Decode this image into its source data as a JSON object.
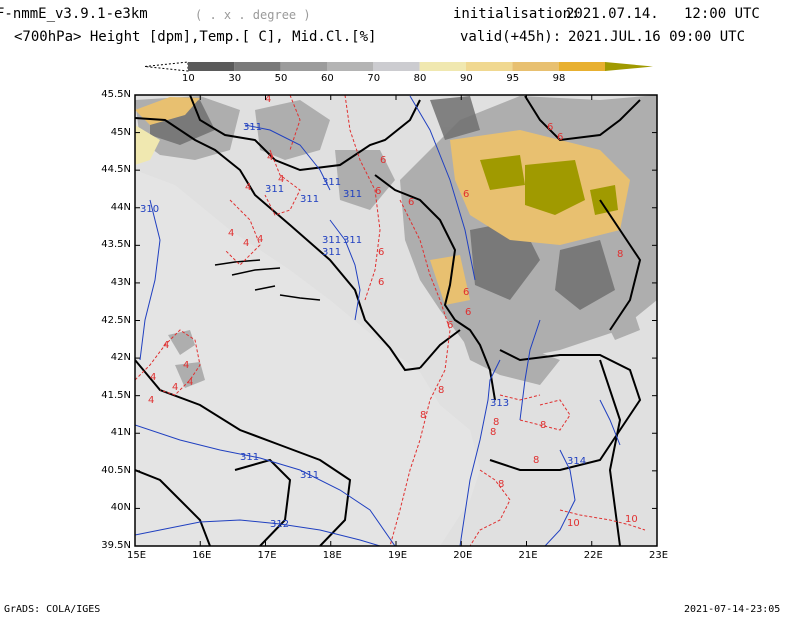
{
  "header": {
    "model": "F-nmmE_v3.9.1-e3km",
    "projection": "( . x . degree )",
    "init_label": "initialisation:",
    "init_value": "2021.07.14.   12:00 UTC",
    "subtitle": "<700hPa> Height [dpm],Temp.[ C], Mid.Cl.[%]",
    "valid_label": "valid(+45h):",
    "valid_value": "2021.JUL.16 09:00 UTC"
  },
  "colorbar": {
    "labels": [
      "10",
      "30",
      "50",
      "60",
      "70",
      "80",
      "90",
      "95",
      "98"
    ],
    "colors": [
      "#5a5a5a",
      "#7a7a7a",
      "#9c9c9c",
      "#b4b4b4",
      "#ccccd0",
      "#f0e8b0",
      "#f0d890",
      "#e8c070",
      "#e8b030",
      "#a09a00"
    ]
  },
  "map": {
    "lat_labels": [
      "45.5N",
      "45N",
      "44.5N",
      "44N",
      "43.5N",
      "43N",
      "42.5N",
      "42N",
      "41.5N",
      "41N",
      "40.5N",
      "40N",
      "39.5N"
    ],
    "lon_labels": [
      "15E",
      "16E",
      "17E",
      "18E",
      "19E",
      "20E",
      "21E",
      "22E",
      "23E"
    ],
    "background_color": "#e0e0e0",
    "height_contour_color": "#2040c0",
    "temp_contour_color": "#e03030",
    "height_labels": [
      "311",
      "311",
      "311",
      "311",
      "311",
      "311",
      "311",
      "311",
      "311",
      "311",
      "312",
      "313",
      "314",
      "310"
    ],
    "temp_labels": [
      "4",
      "4",
      "4",
      "4",
      "4",
      "4",
      "4",
      "4",
      "4",
      "4",
      "4",
      "4",
      "4",
      "6",
      "6",
      "6",
      "6",
      "6",
      "6",
      "6",
      "6",
      "6",
      "6",
      "6",
      "8",
      "8",
      "8",
      "8",
      "8",
      "8",
      "8",
      "8",
      "10",
      "10"
    ]
  },
  "footer": {
    "left": "GrADS: COLA/IGES",
    "right": "2021-07-14-23:05"
  }
}
